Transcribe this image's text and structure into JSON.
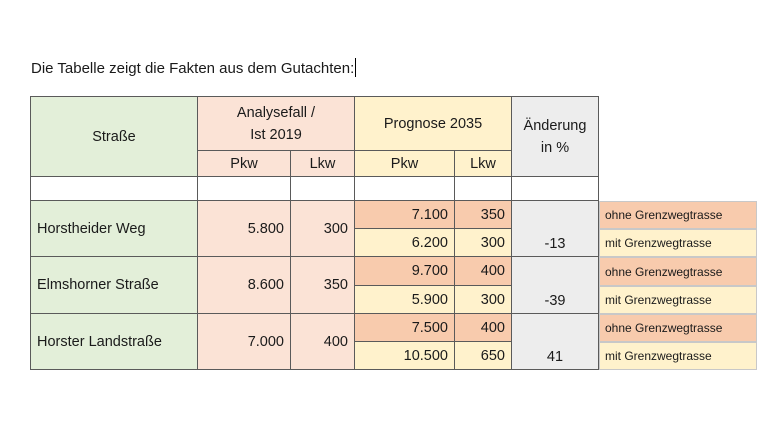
{
  "intro_text": "Die Tabelle zeigt die Fakten aus dem Gutachten:",
  "table": {
    "header": {
      "street": "Straße",
      "analysis_line1": "Analysefall /",
      "analysis_line2": "Ist 2019",
      "forecast": "Prognose 2035",
      "change_line1": "Änderung",
      "change_line2": "in %",
      "pkw": "Pkw",
      "lkw": "Lkw"
    },
    "rows": [
      {
        "street": "Horstheider Weg",
        "ist_pkw": "5.800",
        "ist_lkw": "300",
        "ohne_pkw": "7.100",
        "ohne_lkw": "350",
        "mit_pkw": "6.200",
        "mit_lkw": "300",
        "change": "-13",
        "note_ohne": "ohne Grenzwegtrasse",
        "note_mit": "mit Grenzwegtrasse"
      },
      {
        "street": "Elmshorner Straße",
        "ist_pkw": "8.600",
        "ist_lkw": "350",
        "ohne_pkw": "9.700",
        "ohne_lkw": "400",
        "mit_pkw": "5.900",
        "mit_lkw": "300",
        "change": "-39",
        "note_ohne": "ohne Grenzwegtrasse",
        "note_mit": "mit Grenzwegtrasse"
      },
      {
        "street": "Horster Landstraße",
        "ist_pkw": "7.000",
        "ist_lkw": "400",
        "ohne_pkw": "7.500",
        "ohne_lkw": "400",
        "mit_pkw": "10.500",
        "mit_lkw": "650",
        "change": "41",
        "note_ohne": "ohne Grenzwegtrasse",
        "note_mit": "mit Grenzwegtrasse"
      }
    ]
  },
  "colors": {
    "green": "#e3efd9",
    "pink": "#fbe3d6",
    "yellow": "#fff2cc",
    "orange": "#f8cbad",
    "gray": "#ededed"
  }
}
